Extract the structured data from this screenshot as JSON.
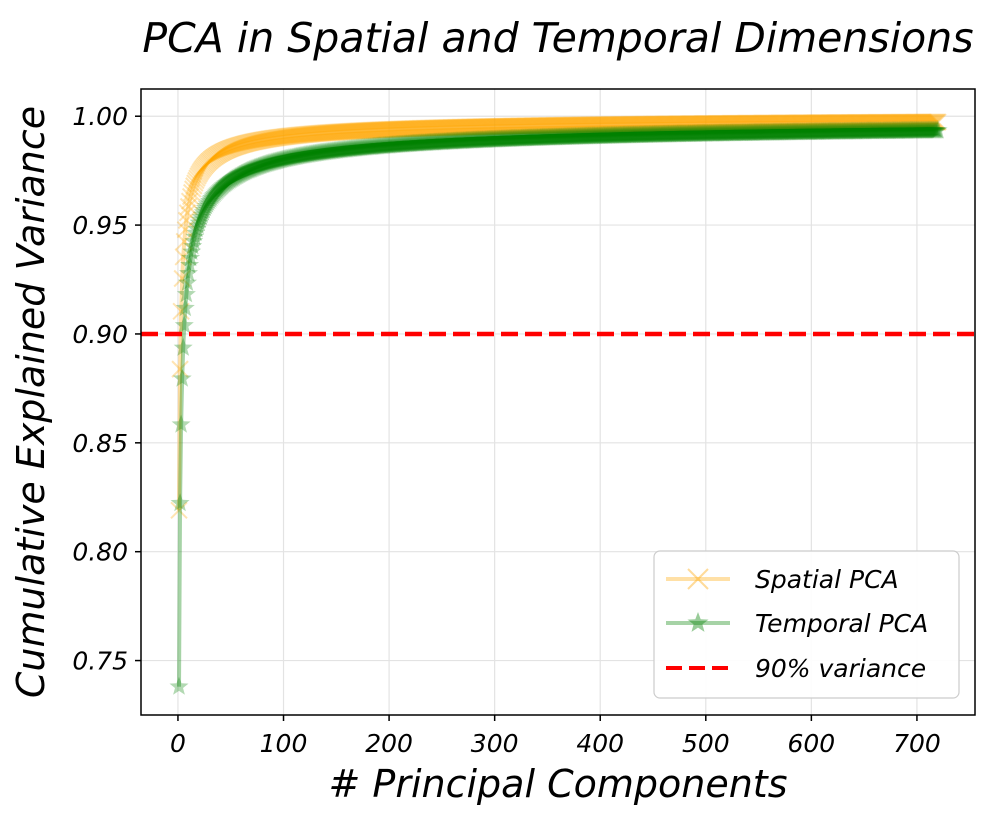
{
  "chart_data": {
    "type": "line",
    "title": "PCA in Spatial and Temporal Dimensions",
    "xlabel": "# Principal Components",
    "ylabel": "Cumulative Explained Variance",
    "xlim": [
      -35,
      755
    ],
    "ylim": [
      0.725,
      1.0125
    ],
    "xticks": [
      0,
      100,
      200,
      300,
      400,
      500,
      600,
      700
    ],
    "xtick_labels": [
      "0",
      "100",
      "200",
      "300",
      "400",
      "500",
      "600",
      "700"
    ],
    "yticks": [
      0.75,
      0.8,
      0.85,
      0.9,
      0.95,
      1.0
    ],
    "ytick_labels": [
      "0.75",
      "0.80",
      "0.85",
      "0.90",
      "0.95",
      "1.00"
    ],
    "grid": true,
    "legend_position": "lower-right",
    "hline": {
      "y": 0.9,
      "label": "90% variance",
      "color": "#ff0000",
      "style": "dashed"
    },
    "series": [
      {
        "name": "Spatial PCA",
        "color": "#ffa500",
        "marker": "x",
        "model": {
          "a": 0.181,
          "p": 0.64
        },
        "n_components": 720
      },
      {
        "name": "Temporal PCA",
        "color": "#008000",
        "marker": "star",
        "model": {
          "a": 0.262,
          "p": 0.56
        },
        "n_components": 720
      }
    ]
  }
}
